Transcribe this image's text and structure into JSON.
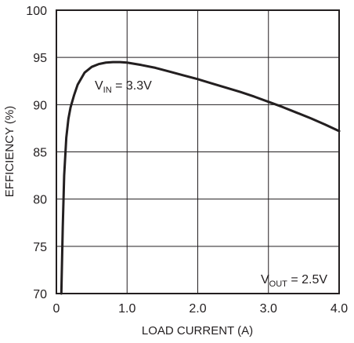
{
  "chart_data": {
    "type": "line",
    "title": "",
    "xlabel": "LOAD CURRENT (A)",
    "ylabel": "EFFICIENCY (%)",
    "xlim": [
      0,
      4.0
    ],
    "ylim": [
      70,
      100
    ],
    "x_ticks": [
      "0",
      "1.0",
      "2.0",
      "3.0",
      "4.0"
    ],
    "y_ticks": [
      "70",
      "75",
      "80",
      "85",
      "90",
      "95",
      "100"
    ],
    "grid": true,
    "series": [
      {
        "x": [
          0.07,
          0.09,
          0.11,
          0.14,
          0.17,
          0.2,
          0.25,
          0.3,
          0.4,
          0.5,
          0.6,
          0.7,
          0.8,
          0.9,
          1.0,
          1.2,
          1.4,
          1.6,
          1.8,
          2.0,
          2.2,
          2.4,
          2.6,
          2.8,
          3.0,
          3.2,
          3.4,
          3.6,
          3.8,
          4.0
        ],
        "values": [
          70.0,
          77.0,
          82.5,
          86.5,
          88.5,
          89.7,
          91.0,
          92.1,
          93.4,
          94.0,
          94.3,
          94.45,
          94.5,
          94.5,
          94.45,
          94.2,
          93.9,
          93.5,
          93.1,
          92.7,
          92.25,
          91.8,
          91.35,
          90.85,
          90.3,
          89.75,
          89.15,
          88.55,
          87.9,
          87.2
        ]
      }
    ],
    "annotations": [
      {
        "main": "V",
        "sub": "IN",
        "rest": " = 3.3V"
      },
      {
        "main": "V",
        "sub": "OUT",
        "rest": " = 2.5V"
      }
    ]
  }
}
